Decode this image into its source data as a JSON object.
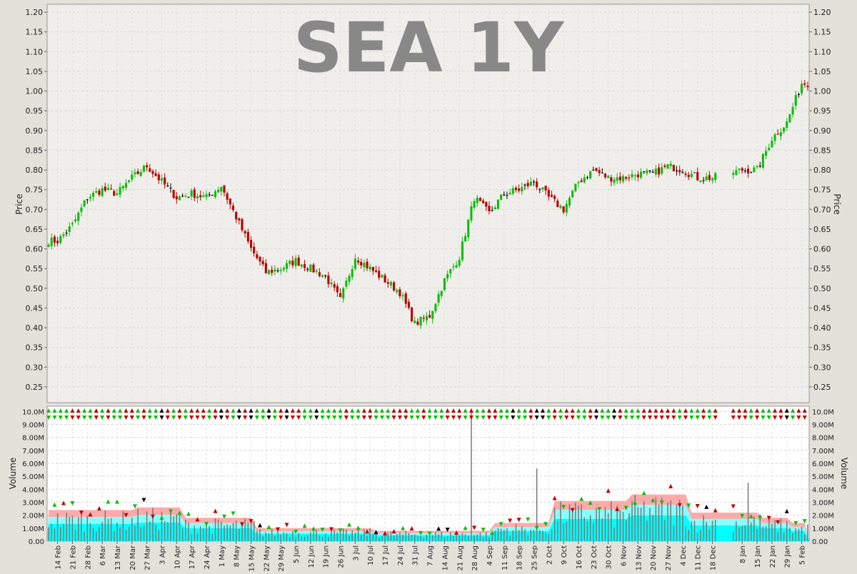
{
  "chart_data": [
    {
      "type": "candlestick",
      "title": "SEA 1Y",
      "ylabel": "Price",
      "ylim": [
        0.21,
        1.22
      ],
      "yticks": [
        "0.25",
        "0.30",
        "0.35",
        "0.40",
        "0.45",
        "0.50",
        "0.55",
        "0.60",
        "0.65",
        "0.70",
        "0.75",
        "0.80",
        "0.85",
        "0.90",
        "0.95",
        "1.00",
        "1.05",
        "1.10",
        "1.15",
        "1.20"
      ],
      "x_tick_labels": [
        "14 Feb",
        "21 Feb",
        "28 Feb",
        "6 Mar",
        "13 Mar",
        "20 Mar",
        "27 Mar",
        "3 Apr",
        "10 Apr",
        "17 Apr",
        "24 Apr",
        "1 May",
        "8 May",
        "15 May",
        "22 May",
        "29 May",
        "5 Jun",
        "12 Jun",
        "19 Jun",
        "26 Jun",
        "3 Jul",
        "10 Jul",
        "17 Jul",
        "24 Jul",
        "31 Jul",
        "7 Aug",
        "14 Aug",
        "21 Aug",
        "28 Aug",
        "4 Sep",
        "11 Sep",
        "18 Sep",
        "25 Sep",
        "2 Oct",
        "9 Oct",
        "16 Oct",
        "23 Oct",
        "30 Oct",
        "6 Nov",
        "13 Nov",
        "20 Nov",
        "27 Nov",
        "4 Dec",
        "11 Dec",
        "18 Dec",
        "8 Jan",
        "15 Jan",
        "22 Jan",
        "29 Jan",
        "5 Feb"
      ],
      "weekly_close": [
        0.62,
        0.66,
        0.73,
        0.75,
        0.74,
        0.78,
        0.81,
        0.77,
        0.73,
        0.74,
        0.73,
        0.76,
        0.68,
        0.6,
        0.54,
        0.55,
        0.57,
        0.55,
        0.53,
        0.47,
        0.58,
        0.55,
        0.52,
        0.49,
        0.41,
        0.43,
        0.52,
        0.58,
        0.73,
        0.69,
        0.74,
        0.75,
        0.77,
        0.73,
        0.7,
        0.77,
        0.8,
        0.78,
        0.78,
        0.79,
        0.79,
        0.81,
        0.8,
        0.78,
        0.78,
        0.8,
        0.8,
        0.88,
        0.92,
        1.02
      ],
      "grid": true
    },
    {
      "type": "bar",
      "ylabel": "Volume",
      "ylim": [
        0,
        10400000
      ],
      "yticks": [
        "0.00",
        "1.00M",
        "2.00M",
        "3.00M",
        "4.00M",
        "5.00M",
        "6.00M",
        "7.00M",
        "8.00M",
        "9.00M",
        "10.0M"
      ],
      "grid": true
    }
  ],
  "colors": {
    "up": "#11bb11",
    "down": "#bb0000",
    "doji": "#000000",
    "volume_bar": "#777777",
    "band_pink": "#ffaaaa",
    "band_cyan_light": "#88ffff",
    "band_cyan": "#00ffff",
    "title": "#888888"
  }
}
